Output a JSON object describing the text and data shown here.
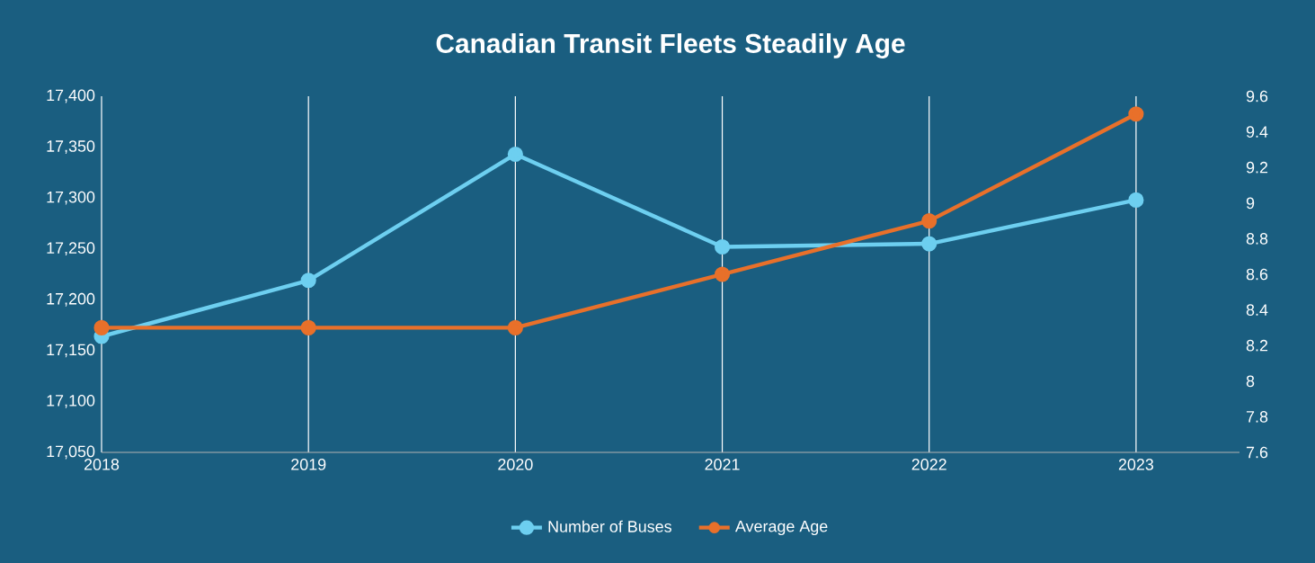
{
  "chart_data": {
    "type": "line",
    "title": "Canadian Transit Fleets Steadily Age",
    "x": [
      2018,
      2019,
      2020,
      2021,
      2022,
      2023
    ],
    "xlim": [
      2018,
      2023.5
    ],
    "xticks": [
      2018,
      2019,
      2020,
      2021,
      2022,
      2023
    ],
    "ylim": [
      17050,
      17400
    ],
    "yticks": [
      {
        "value": 17050,
        "label": "17,050"
      },
      {
        "value": 17100,
        "label": "17,100"
      },
      {
        "value": 17150,
        "label": "17,150"
      },
      {
        "value": 17200,
        "label": "17,200"
      },
      {
        "value": 17250,
        "label": "17,250"
      },
      {
        "value": 17300,
        "label": "17,300"
      },
      {
        "value": 17350,
        "label": "17,350"
      },
      {
        "value": 17400,
        "label": "17,400"
      }
    ],
    "y2lim": [
      7.6,
      9.6
    ],
    "y2ticks": [
      7.6,
      7.8,
      8,
      8.2,
      8.4,
      8.6,
      8.8,
      9,
      9.2,
      9.4,
      9.6
    ],
    "series": [
      {
        "name": "Number of Buses",
        "color": "#6dcff0",
        "values": [
          17164,
          17219,
          17343,
          17252,
          17255,
          17298
        ]
      },
      {
        "name": "Average Age",
        "color": "#e8702a",
        "axis": "y2",
        "values": [
          8.3,
          8.3,
          8.3,
          8.6,
          8.9,
          9.5
        ]
      }
    ],
    "grid": "x",
    "legend": "bottom",
    "marker": "circle",
    "line_style": "solid"
  }
}
